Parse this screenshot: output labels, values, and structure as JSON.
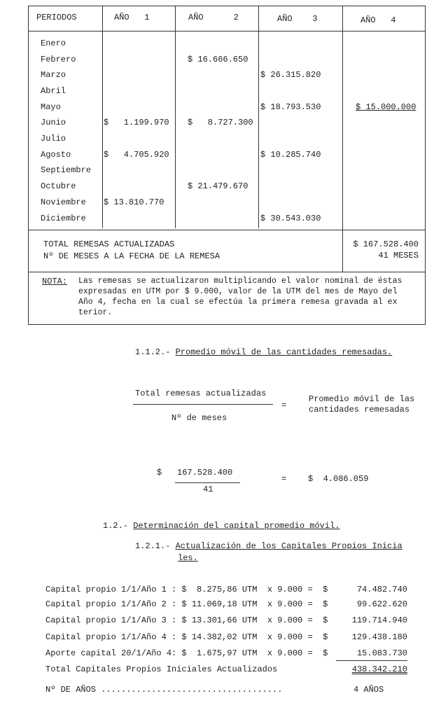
{
  "table": {
    "headers": [
      "PERIODOS",
      "AÑO   1",
      "AÑO      2",
      "AÑO    3",
      "AÑO   4"
    ],
    "months": [
      "Enero",
      "Febrero",
      "Marzo",
      "Abril",
      "Mayo",
      "Junio",
      "Julio",
      "Agosto",
      "Septiembre",
      "Octubre",
      "Noviembre",
      "Diciembre"
    ],
    "year1": [
      "",
      "",
      "",
      "",
      "",
      "$   1.199.970",
      "",
      "$   4.705.920",
      "",
      "",
      "$ 13.810.770",
      ""
    ],
    "year2": [
      "",
      "$ 16.666.650",
      "",
      "",
      "",
      "$   8.727.300",
      "",
      "",
      "",
      "$ 21.479.670",
      "",
      ""
    ],
    "year3": [
      "",
      "",
      "$ 26.315.820",
      "",
      "$ 18.793.530",
      "",
      "",
      "$ 10.285.740",
      "",
      "",
      "",
      "$ 30.543.030"
    ],
    "year4": [
      "",
      "",
      "",
      "",
      "$ 15.000.000",
      "",
      "",
      "",
      "",
      "",
      "",
      ""
    ],
    "total_label": "TOTAL REMESAS ACTUALIZADAS",
    "months_label": "Nº DE MESES A LA FECHA DE LA REMESA",
    "total_value": "$ 167.528.400",
    "months_value": "41 MESES",
    "note_label": "NOTA:",
    "note_lines": [
      "Las remesas se actualizaron multiplicando el valor nominal de éstas",
      "expresadas en UTM por $ 9.000, valor de la UTM del mes de Mayo del",
      "Año 4, fecha en la cual se efectúa la primera remesa gravada al ex",
      "terior."
    ]
  },
  "s112": {
    "num": "1.1.2.- ",
    "title": "Promedio móvil de las cantidades remesadas."
  },
  "formula": {
    "numerator": "Total remesas actualizadas",
    "denominator": "Nº de meses",
    "eq": "=",
    "result1": "Promedio móvil de las",
    "result2": "cantidades remesadas"
  },
  "calc": {
    "dollar": "$",
    "numerator": "167.528.400",
    "denominator": "41",
    "eq": "=",
    "result": "$  4.086.059"
  },
  "s12": {
    "num": "1.2.- ",
    "title": "Determinación del capital promedio móvil."
  },
  "s121": {
    "num": "1.2.1.- ",
    "title1": "Actualización de los Capitales Propios Inicia",
    "title2": "les."
  },
  "capitals": [
    {
      "label": "Capital propio 1/1/Año 1 : $  8.275,86 UTM  x 9.000 =  $",
      "value": "74.482.740"
    },
    {
      "label": "Capital propio 1/1/Año 2 : $ 11.069,18 UTM  x 9.000 =  $",
      "value": "99.622.620"
    },
    {
      "label": "Capital propio 1/1/Año 3 : $ 13.301,66 UTM  x 9.000 =  $",
      "value": "119.714.940"
    },
    {
      "label": "Capital propio 1/1/Año 4 : $ 14.382,02 UTM  x 9.000 =  $",
      "value": "129.438.180"
    },
    {
      "label": "Aporte capital 20/1/Año 4: $  1.675,97 UTM  x 9.000 =  $",
      "value": "15.083.730"
    }
  ],
  "total_cap": {
    "label": "Total Capitales Propios Iniciales Actualizados",
    "value": "438.342.210"
  },
  "years": {
    "label": "Nº DE AÑOS ....................................",
    "value": "4 AÑOS"
  }
}
